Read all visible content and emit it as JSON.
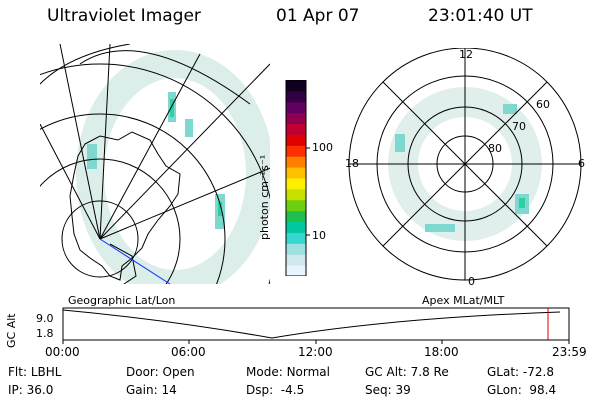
{
  "header": {
    "instrument": "Ultraviolet Imager",
    "date": "01 Apr 07",
    "time": "23:01:40 UT"
  },
  "colorbar": {
    "unit_label": "photon cm⁻²s⁻¹",
    "ticks": [
      "100",
      "10"
    ],
    "colors": [
      "#e8f4ff",
      "#cfe9ee",
      "#9fe0e0",
      "#38d6d0",
      "#00c8a0",
      "#20c050",
      "#6cd010",
      "#c8e000",
      "#fff000",
      "#ffc000",
      "#ff8000",
      "#ff3000",
      "#e00000",
      "#c00030",
      "#900050",
      "#600060",
      "#300040",
      "#100020"
    ]
  },
  "left_map": {
    "label": "Geographic Lat/Lon"
  },
  "right_map": {
    "label": "Apex MLat/MLT",
    "mlt_labels": {
      "top": "12",
      "left": "18",
      "right": "6",
      "bottom": "0"
    },
    "lat_labels": [
      "60",
      "70",
      "80"
    ]
  },
  "altitude_plot": {
    "ylabel": "GC Alt",
    "yticks": [
      "9.0",
      "1.8"
    ],
    "xticks": [
      "00:00",
      "06:00",
      "12:00",
      "18:00",
      "23:59"
    ]
  },
  "info_panel": {
    "row1": [
      {
        "key": "Flt:",
        "value": "LBHL"
      },
      {
        "key": "Door:",
        "value": "Open"
      },
      {
        "key": "Mode:",
        "value": "Normal"
      },
      {
        "key": "GC Alt:",
        "value": "7.8 Re"
      },
      {
        "key": "GLat:",
        "value": "-72.8"
      }
    ],
    "row2": [
      {
        "key": "IP:",
        "value": "36.0"
      },
      {
        "key": "Gain:",
        "value": "14"
      },
      {
        "key": "Dsp:",
        "value": "-4.5"
      },
      {
        "key": "Seq:",
        "value": "39"
      },
      {
        "key": "GLon:",
        "value": "98.4"
      }
    ]
  }
}
